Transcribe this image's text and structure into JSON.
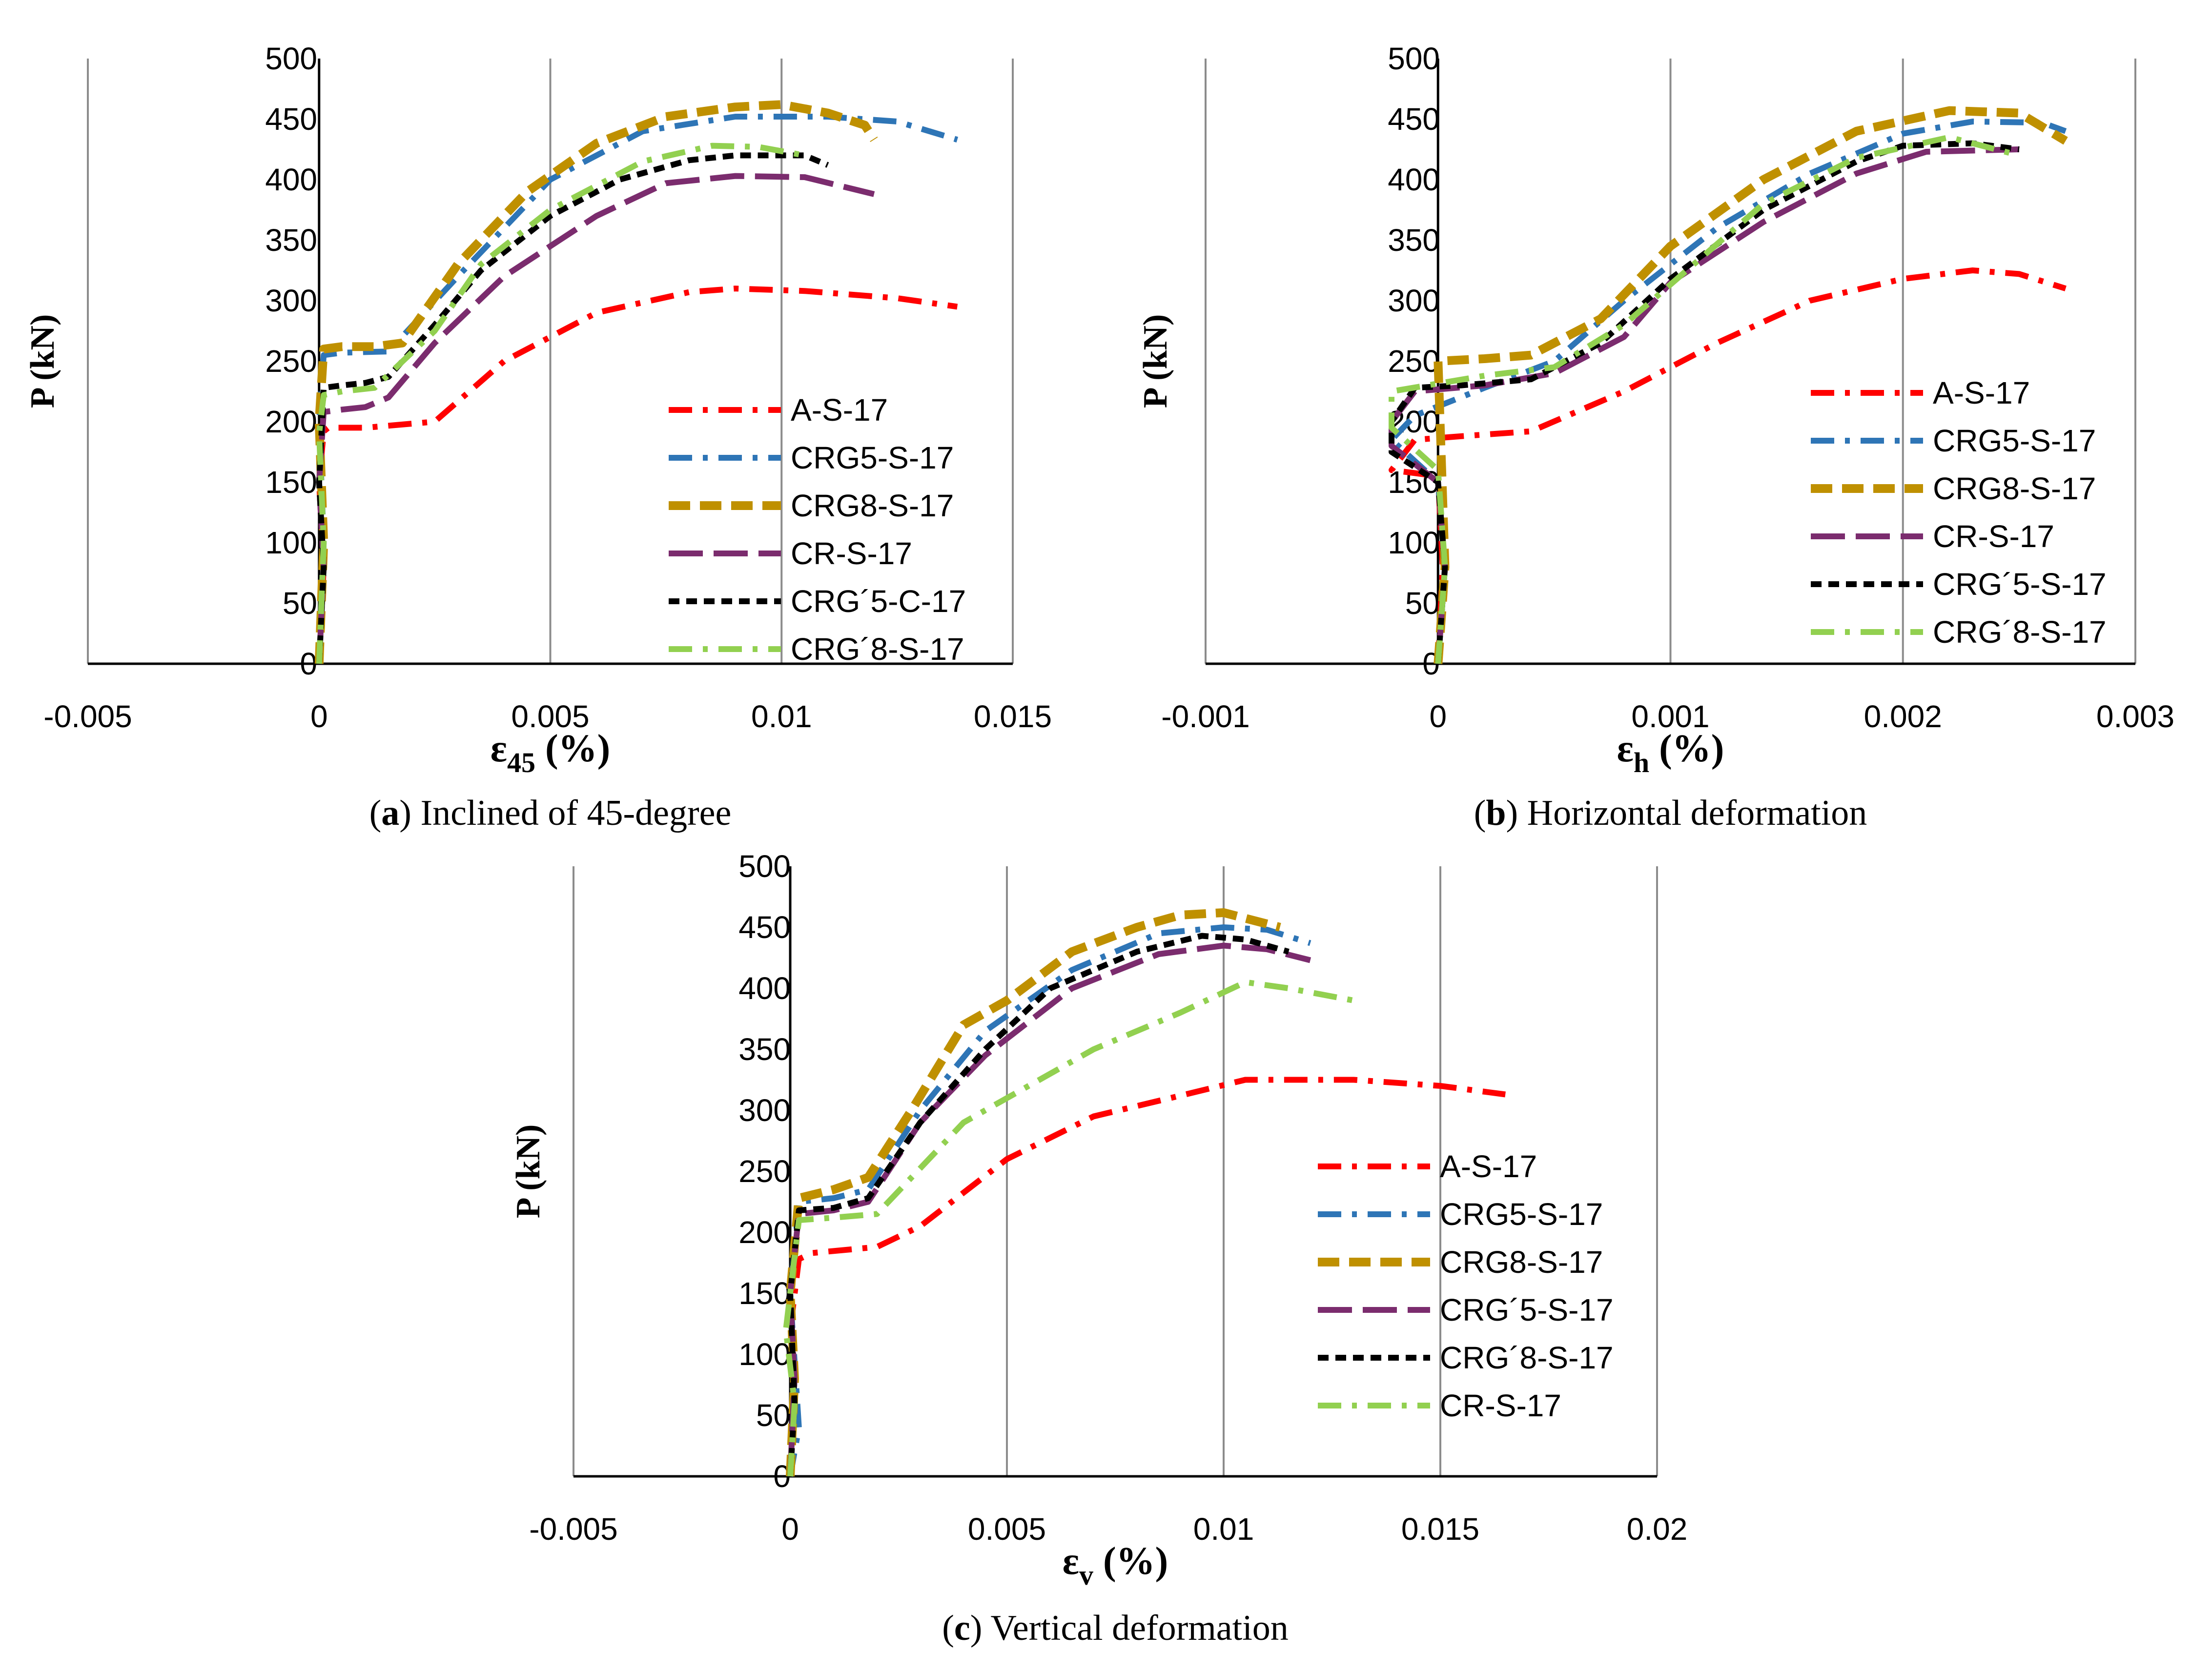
{
  "chart_data": [
    {
      "type": "line",
      "panel": "a",
      "caption_letter": "a",
      "caption_text": ") Inclined of 45-degree",
      "xlabel_main": "ε",
      "xlabel_sub": "45",
      "xlabel_unit": " (%)",
      "ylabel": "P (kN)",
      "xlim": [
        -0.005,
        0.015
      ],
      "ylim": [
        0,
        500
      ],
      "xticks": [
        -0.005,
        0,
        0.005,
        0.01,
        0.015
      ],
      "xtick_labels": [
        "-0.005",
        "0",
        "0.005",
        "0.01",
        "0.015"
      ],
      "yticks": [
        0,
        50,
        100,
        150,
        200,
        250,
        300,
        350,
        400,
        450,
        500
      ],
      "ytick_labels": [
        "0",
        "50",
        "100",
        "150",
        "200",
        "250",
        "300",
        "350",
        "400",
        "450",
        "500"
      ],
      "vertical_grid": true,
      "legend_position": "bottom-right",
      "series": [
        {
          "name": "A-S-17",
          "color": "#ff0000",
          "style": "dashdot",
          "x": [
            0,
            0.0001,
            0,
            0.0001,
            0.0002,
            0.001,
            0.0025,
            0.004,
            0.006,
            0.008,
            0.009,
            0.0105,
            0.0125,
            0.0138
          ],
          "y": [
            0,
            80,
            150,
            192,
            195,
            195,
            200,
            250,
            290,
            307,
            310,
            308,
            302,
            295
          ]
        },
        {
          "name": "CRG5-S-17",
          "color": "#2e75b6",
          "style": "dashdot",
          "x": [
            0,
            0.0001,
            0,
            0.0001,
            0.0005,
            0.0015,
            0.003,
            0.005,
            0.007,
            0.009,
            0.011,
            0.0125,
            0.0138
          ],
          "y": [
            0,
            100,
            200,
            255,
            257,
            258,
            320,
            400,
            440,
            452,
            452,
            448,
            433
          ]
        },
        {
          "name": "CRG8-S-17",
          "color": "#bf9000",
          "style": "dash",
          "x": [
            0,
            0.0001,
            0,
            0.0001,
            0.0005,
            0.0012,
            0.0018,
            0.003,
            0.0045,
            0.006,
            0.0075,
            0.009,
            0.01,
            0.011,
            0.0118,
            0.012
          ],
          "y": [
            0,
            100,
            200,
            260,
            262,
            262,
            265,
            330,
            390,
            430,
            452,
            460,
            462,
            455,
            445,
            433
          ]
        },
        {
          "name": "CR-S-17",
          "color": "#7b2c6e",
          "style": "longdash",
          "x": [
            0,
            0.0001,
            0,
            0.0001,
            0.0005,
            0.001,
            0.0015,
            0.0025,
            0.004,
            0.006,
            0.0075,
            0.009,
            0.0105,
            0.012
          ],
          "y": [
            0,
            80,
            150,
            208,
            210,
            212,
            220,
            265,
            320,
            370,
            397,
            403,
            402,
            388
          ]
        },
        {
          "name": "CRG´5-C-17",
          "color": "#000000",
          "style": "shortdash",
          "x": [
            0,
            0.0001,
            0,
            0.0001,
            0.0005,
            0.001,
            0.0015,
            0.0025,
            0.0035,
            0.005,
            0.0065,
            0.008,
            0.009,
            0.0105,
            0.011
          ],
          "y": [
            0,
            80,
            150,
            228,
            230,
            232,
            237,
            280,
            325,
            370,
            400,
            416,
            420,
            420,
            412
          ]
        },
        {
          "name": "CRG´8-S-17",
          "color": "#92d050",
          "style": "dashdot",
          "x": [
            0,
            0.0001,
            0,
            0.0001,
            0.0005,
            0.0012,
            0.0025,
            0.0035,
            0.005,
            0.007,
            0.0085,
            0.0095,
            0.0105
          ],
          "y": [
            0,
            100,
            190,
            222,
            225,
            228,
            275,
            330,
            375,
            415,
            428,
            427,
            420
          ]
        }
      ]
    },
    {
      "type": "line",
      "panel": "b",
      "caption_letter": "b",
      "caption_text": ") Horizontal deformation",
      "xlabel_main": "ε",
      "xlabel_sub": "h",
      "xlabel_unit": " (%)",
      "ylabel": "P (kN)",
      "xlim": [
        -0.001,
        0.003
      ],
      "ylim": [
        0,
        500
      ],
      "xticks": [
        -0.001,
        0,
        0.001,
        0.002,
        0.003
      ],
      "xtick_labels": [
        "-0.001",
        "0",
        "0.001",
        "0.002",
        "0.003"
      ],
      "yticks": [
        0,
        50,
        100,
        150,
        200,
        250,
        300,
        350,
        400,
        450,
        500
      ],
      "ytick_labels": [
        "0",
        "50",
        "100",
        "150",
        "200",
        "250",
        "300",
        "350",
        "400",
        "450",
        "500"
      ],
      "vertical_grid": true,
      "legend_position": "bottom-right",
      "series": [
        {
          "name": "A-S-17",
          "color": "#ff0000",
          "style": "dashdot",
          "x": [
            0,
            2e-05,
            0,
            -0.0002,
            -0.0001,
            0.0001,
            0.0004,
            0.0008,
            0.0012,
            0.0016,
            0.002,
            0.0023,
            0.0025,
            0.0027
          ],
          "y": [
            0,
            80,
            155,
            160,
            185,
            188,
            192,
            225,
            265,
            300,
            318,
            325,
            322,
            310
          ]
        },
        {
          "name": "CRG5-S-17",
          "color": "#2e75b6",
          "style": "dashdot",
          "x": [
            0,
            3e-05,
            0,
            -0.0002,
            -0.0001,
            0.0002,
            0.0005,
            0.0008,
            0.0012,
            0.0016,
            0.002,
            0.0023,
            0.0026,
            0.0027
          ],
          "y": [
            0,
            80,
            150,
            185,
            205,
            228,
            250,
            300,
            360,
            405,
            438,
            448,
            447,
            440
          ]
        },
        {
          "name": "CRG8-S-17",
          "color": "#bf9000",
          "style": "dash",
          "x": [
            0,
            3e-05,
            0,
            0.0002,
            0.0004,
            0.0007,
            0.001,
            0.0014,
            0.0018,
            0.0022,
            0.0025,
            0.0027
          ],
          "y": [
            0,
            80,
            250,
            252,
            255,
            285,
            345,
            400,
            440,
            457,
            455,
            432
          ]
        },
        {
          "name": "CR-S-17",
          "color": "#7b2c6e",
          "style": "longdash",
          "x": [
            0,
            3e-05,
            0,
            -0.0002,
            -0.0002,
            -0.0001,
            0.0002,
            0.0005,
            0.0008,
            0.001,
            0.0014,
            0.0018,
            0.0021,
            0.0025
          ],
          "y": [
            0,
            80,
            150,
            180,
            200,
            225,
            230,
            240,
            270,
            315,
            365,
            405,
            423,
            425
          ]
        },
        {
          "name": "CRG´5-S-17",
          "color": "#000000",
          "style": "shortdash",
          "x": [
            0,
            3e-05,
            0,
            -0.0002,
            -0.0002,
            -0.0001,
            0.0001,
            0.0004,
            0.0007,
            0.001,
            0.0014,
            0.0018,
            0.002,
            0.0023,
            0.0025
          ],
          "y": [
            0,
            80,
            150,
            175,
            200,
            228,
            230,
            235,
            265,
            318,
            375,
            415,
            428,
            430,
            425
          ]
        },
        {
          "name": "CRG´8-S-17",
          "color": "#92d050",
          "style": "dashdot",
          "x": [
            0,
            3e-05,
            0,
            -0.0002,
            -0.0002,
            0.0002,
            0.0005,
            0.0008,
            0.0011,
            0.0014,
            0.0018,
            0.0022,
            0.0025
          ],
          "y": [
            0,
            80,
            160,
            195,
            225,
            238,
            245,
            280,
            330,
            380,
            418,
            435,
            420
          ]
        }
      ]
    },
    {
      "type": "line",
      "panel": "c",
      "caption_letter": "c",
      "caption_text": ") Vertical deformation",
      "xlabel_main": "ε",
      "xlabel_sub": "v",
      "xlabel_unit": " (%)",
      "ylabel": "P (kN)",
      "xlim": [
        -0.005,
        0.02
      ],
      "ylim": [
        0,
        500
      ],
      "xticks": [
        -0.005,
        0,
        0.005,
        0.01,
        0.015,
        0.02
      ],
      "xtick_labels": [
        "-0.005",
        "0",
        "0.005",
        "0.01",
        "0.015",
        "0.02"
      ],
      "yticks": [
        0,
        50,
        100,
        150,
        200,
        250,
        300,
        350,
        400,
        450,
        500
      ],
      "ytick_labels": [
        "0",
        "50",
        "100",
        "150",
        "200",
        "250",
        "300",
        "350",
        "400",
        "450",
        "500"
      ],
      "vertical_grid": true,
      "legend_position": "bottom-right",
      "series": [
        {
          "name": "A-S-17",
          "color": "#ff0000",
          "style": "dashdot",
          "x": [
            0,
            0.0001,
            0,
            0.0002,
            0.0005,
            0.002,
            0.003,
            0.005,
            0.007,
            0.009,
            0.0105,
            0.013,
            0.015,
            0.0165
          ],
          "y": [
            0,
            60,
            120,
            178,
            183,
            188,
            205,
            260,
            295,
            312,
            325,
            325,
            320,
            313
          ]
        },
        {
          "name": "CRG5-S-17",
          "color": "#2e75b6",
          "style": "dashdot",
          "x": [
            0,
            0.0002,
            0,
            0.0002,
            0.001,
            0.0018,
            0.003,
            0.0045,
            0.0065,
            0.0085,
            0.01,
            0.011,
            0.012
          ],
          "y": [
            0,
            40,
            150,
            225,
            228,
            235,
            300,
            365,
            415,
            445,
            450,
            448,
            437
          ]
        },
        {
          "name": "CRG8-S-17",
          "color": "#bf9000",
          "style": "dash",
          "x": [
            0,
            0.0001,
            0,
            0.0002,
            0.001,
            0.0018,
            0.0028,
            0.004,
            0.005,
            0.0065,
            0.008,
            0.009,
            0.01,
            0.0113
          ],
          "y": [
            0,
            80,
            150,
            228,
            235,
            245,
            300,
            370,
            390,
            430,
            450,
            460,
            462,
            450
          ]
        },
        {
          "name": "CRG´5-S-17",
          "color": "#7b2c6e",
          "style": "longdash",
          "x": [
            0,
            0.0001,
            0,
            0.0002,
            0.001,
            0.0018,
            0.003,
            0.0045,
            0.0065,
            0.0085,
            0.01,
            0.011,
            0.012
          ],
          "y": [
            0,
            80,
            150,
            215,
            218,
            225,
            290,
            345,
            400,
            428,
            435,
            432,
            423
          ]
        },
        {
          "name": "CRG´8-S-17",
          "color": "#000000",
          "style": "shortdash",
          "x": [
            0,
            0.0001,
            0,
            0.0002,
            0.001,
            0.0018,
            0.003,
            0.0045,
            0.006,
            0.008,
            0.0095,
            0.0105,
            0.0115
          ],
          "y": [
            0,
            60,
            150,
            218,
            220,
            228,
            290,
            350,
            400,
            430,
            443,
            440,
            430
          ]
        },
        {
          "name": "CR-S-17",
          "color": "#92d050",
          "style": "dashdot",
          "x": [
            0,
            0.0001,
            -0.0001,
            0.0002,
            0.001,
            0.002,
            0.004,
            0.007,
            0.009,
            0.0105,
            0.0115,
            0.013
          ],
          "y": [
            0,
            60,
            120,
            210,
            212,
            215,
            290,
            350,
            380,
            405,
            400,
            390
          ]
        }
      ]
    }
  ]
}
